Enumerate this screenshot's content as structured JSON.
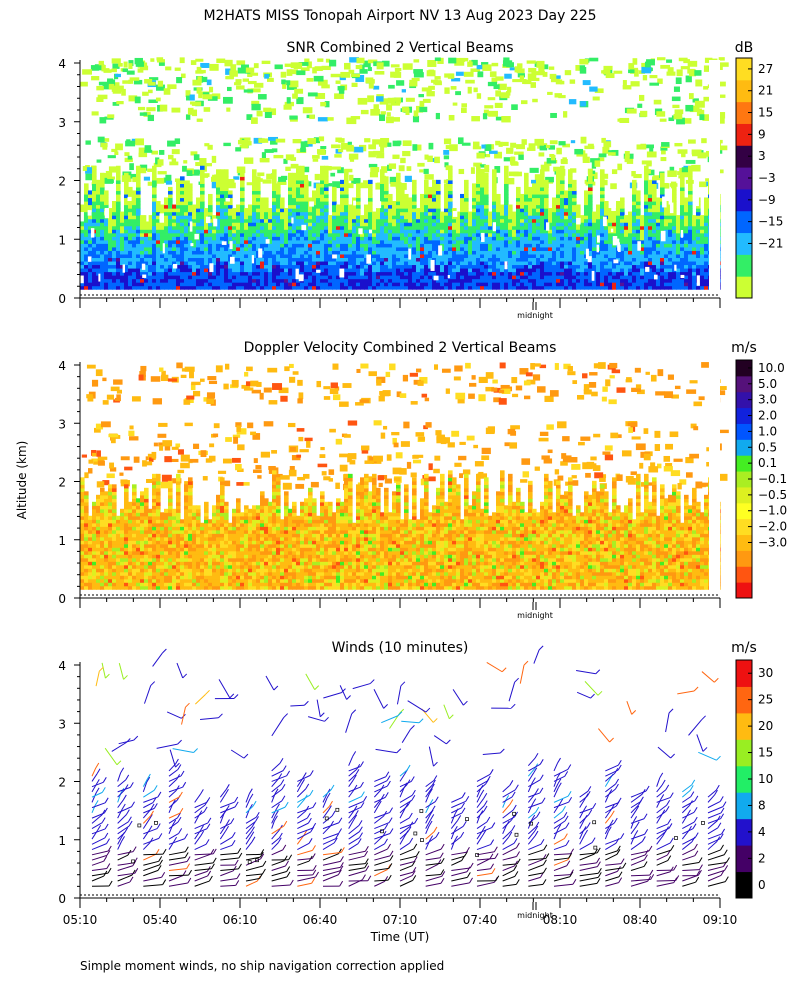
{
  "title": "M2HATS MISS Tonopah Airport NV  13 Aug 2023 Day 225",
  "ylabel": "Altitude (km)",
  "xlabel": "Time (UT)",
  "midnight_label": "midnight",
  "footnote": "Simple moment winds, no ship navigation correction applied",
  "time_ticks": [
    "05:10",
    "05:40",
    "06:10",
    "06:40",
    "07:10",
    "07:40",
    "08:10",
    "08:40",
    "09:10"
  ],
  "altitude_ticks": [
    "0",
    "1",
    "2",
    "3",
    "4"
  ],
  "colors": {
    "snr": [
      "#ccff33",
      "#33ee66",
      "#22bbff",
      "#0066ff",
      "#1a10cc",
      "#551199",
      "#330044",
      "#ee2211",
      "#ff7711",
      "#ffbb11",
      "#ffdd22"
    ],
    "doppler": [
      "#ee1111",
      "#ff5511",
      "#ff9911",
      "#ffbb11",
      "#ffdd22",
      "#ffff22",
      "#ddf020",
      "#aaee22",
      "#44ee22",
      "#11aaee",
      "#0055ff",
      "#1122dd",
      "#3311aa",
      "#55117a",
      "#220022"
    ],
    "winds": [
      "#000000",
      "#440066",
      "#2211cc",
      "#11aaee",
      "#22ee66",
      "#99ee22",
      "#ffbb11",
      "#ff6611",
      "#ee1111"
    ]
  },
  "chart_data": [
    {
      "type": "heatmap",
      "title": "SNR Combined 2 Vertical Beams",
      "unit": "dB",
      "colorbar_labels": [
        "27",
        "21",
        "15",
        "9",
        "3",
        "−3",
        "−9",
        "−15",
        "−21"
      ],
      "ylim": [
        0,
        4
      ],
      "xlim": [
        "05:10",
        "09:10"
      ],
      "xticks": [
        "05:10",
        "05:40",
        "06:10",
        "06:40",
        "07:10",
        "07:40",
        "08:10",
        "08:40",
        "09:10"
      ],
      "yticks": [
        0,
        1,
        2,
        3,
        4
      ],
      "midnight_marker": "midnight"
    },
    {
      "type": "heatmap",
      "title": "Doppler Velocity Combined 2 Vertical Beams",
      "unit": "m/s",
      "colorbar_labels": [
        "10.0",
        "5.0",
        "3.0",
        "2.0",
        "1.0",
        "0.5",
        "0.1",
        "−0.1",
        "−0.5",
        "−1.0",
        "−2.0",
        "−3.0"
      ],
      "ylim": [
        0,
        4
      ],
      "xlim": [
        "05:10",
        "09:10"
      ],
      "xticks": [
        "05:10",
        "05:40",
        "06:10",
        "06:40",
        "07:10",
        "07:40",
        "08:10",
        "08:40",
        "09:10"
      ],
      "yticks": [
        0,
        1,
        2,
        3,
        4
      ],
      "midnight_marker": "midnight"
    },
    {
      "type": "scatter",
      "title": "Winds (10 minutes)",
      "unit": "m/s",
      "colorbar_labels": [
        "30",
        "25",
        "20",
        "15",
        "10",
        "8",
        "4",
        "2",
        "0"
      ],
      "ylim": [
        0,
        4
      ],
      "xlim": [
        "05:10",
        "09:10"
      ],
      "xticks": [
        "05:10",
        "05:40",
        "06:10",
        "06:40",
        "07:10",
        "07:40",
        "08:10",
        "08:40",
        "09:10"
      ],
      "yticks": [
        0,
        1,
        2,
        3,
        4
      ],
      "midnight_marker": "midnight"
    }
  ]
}
